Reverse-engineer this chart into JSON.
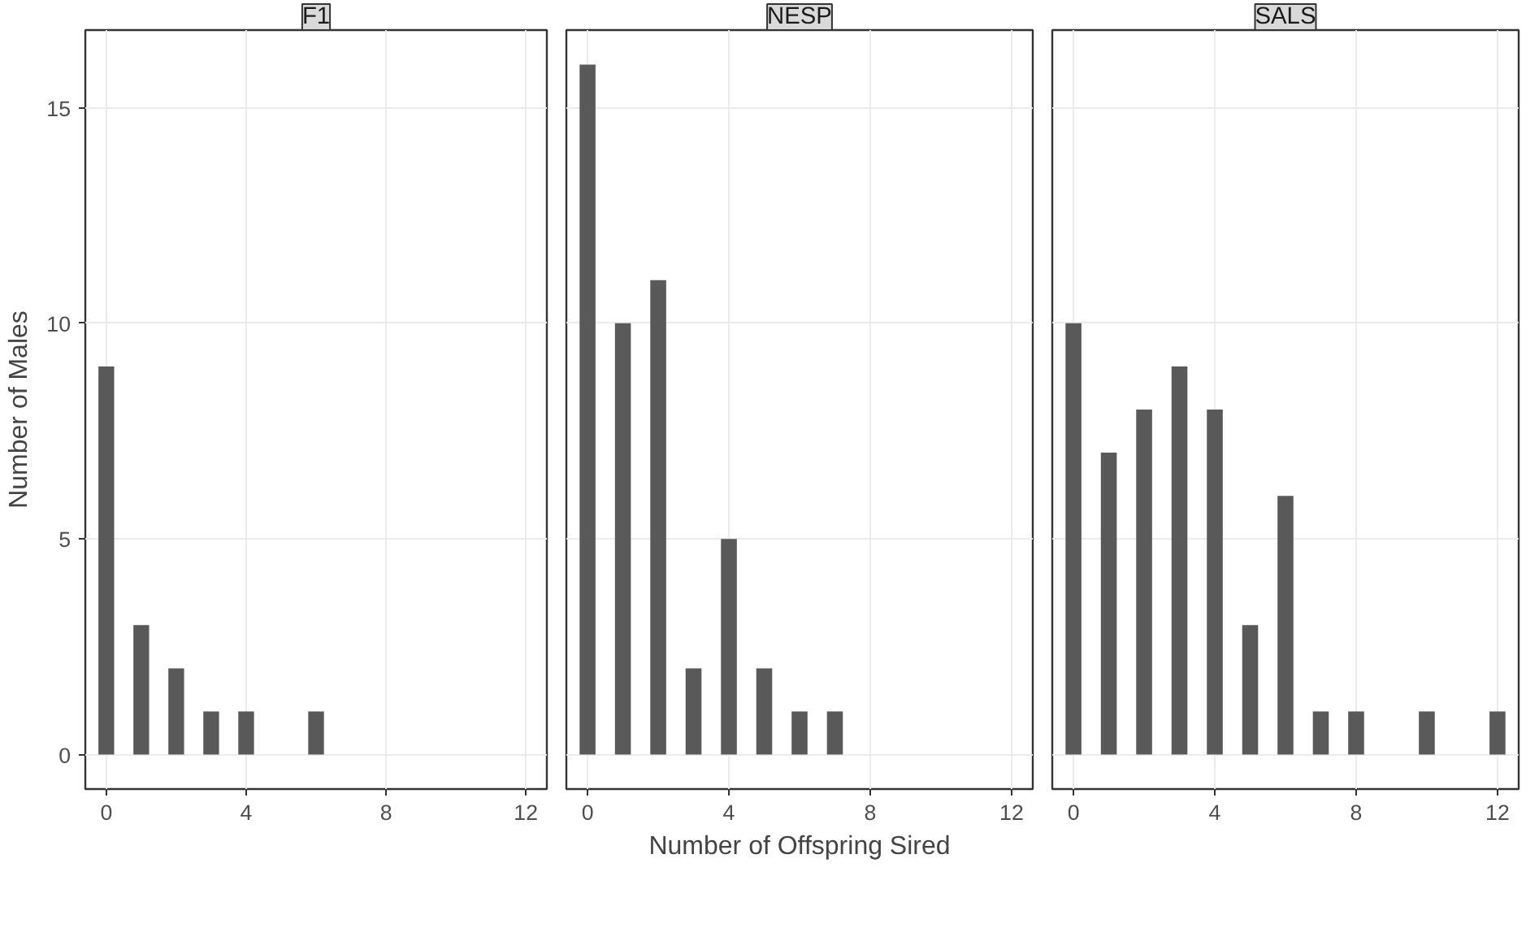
{
  "chart_data": [
    {
      "type": "bar",
      "title": "F1",
      "ylabel": "Number of Males",
      "x": [
        0,
        1,
        2,
        3,
        4,
        6
      ],
      "values": [
        9,
        3,
        2,
        1,
        1,
        1
      ],
      "color": "#595959",
      "xlim": [
        -0.6,
        12.6
      ],
      "ylim": [
        -0.8,
        16.8
      ],
      "xticks": [
        0,
        4,
        8,
        12
      ],
      "yticks": [
        0,
        5,
        10,
        15
      ],
      "grid": true
    },
    {
      "type": "bar",
      "title": "NESP",
      "xlabel": "Number of Offspring Sired",
      "x": [
        0,
        1,
        2,
        3,
        4,
        5,
        6,
        7
      ],
      "values": [
        16,
        10,
        11,
        2,
        5,
        2,
        1,
        1
      ],
      "color": "#595959",
      "xlim": [
        -0.6,
        12.6
      ],
      "ylim": [
        -0.8,
        16.8
      ],
      "xticks": [
        0,
        4,
        8,
        12
      ],
      "yticks": [
        0,
        5,
        10,
        15
      ],
      "grid": true,
      "tick_labels": "x"
    },
    {
      "type": "bar",
      "title": "SALS",
      "x": [
        0,
        1,
        2,
        3,
        4,
        5,
        6,
        7,
        8,
        10,
        12
      ],
      "values": [
        10,
        7,
        8,
        9,
        8,
        3,
        6,
        1,
        1,
        1,
        1
      ],
      "color": "#595959",
      "xlim": [
        -0.6,
        12.6
      ],
      "ylim": [
        -0.8,
        16.8
      ],
      "xticks": [
        0,
        4,
        8,
        12
      ],
      "yticks": [
        0,
        5,
        10,
        15
      ],
      "grid": true,
      "tick_labels": "x"
    }
  ]
}
